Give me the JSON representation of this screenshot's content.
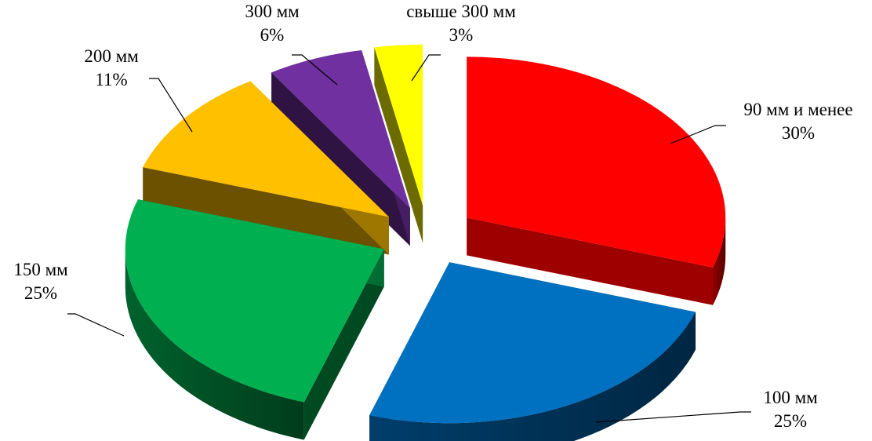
{
  "chart_data": {
    "type": "pie",
    "title": "",
    "style": "3d-exploded",
    "legend": "none",
    "slices": [
      {
        "name": "90 мм и менее",
        "label": "30%",
        "value": 30,
        "color": "#ff0000"
      },
      {
        "name": "100 мм",
        "label": "25%",
        "value": 25,
        "color": "#0070c0"
      },
      {
        "name": "150 мм",
        "label": "25%",
        "value": 25,
        "color": "#00b050"
      },
      {
        "name": "200 мм",
        "label": "11%",
        "value": 11,
        "color": "#ffc000"
      },
      {
        "name": "300 мм",
        "label": "6%",
        "value": 6,
        "color": "#7030a0"
      },
      {
        "name": "свыше 300 мм",
        "label": "3%",
        "value": 3,
        "color": "#ffff00"
      }
    ]
  }
}
